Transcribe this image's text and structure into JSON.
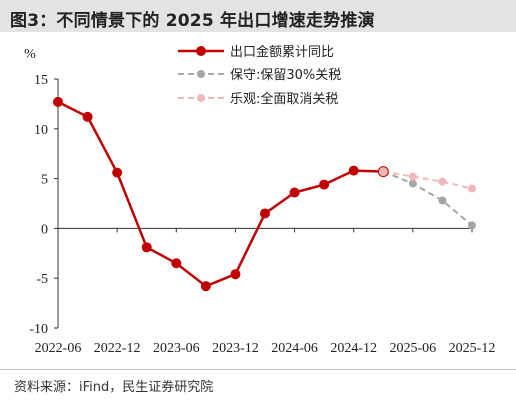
{
  "title": "图3：不同情景下的 2025 年出口增速走势推演",
  "source": "资料来源：iFind，民生证券研究院",
  "colors": {
    "actual": "#c00000",
    "keep30": "#a6a6a6",
    "full_cancel": "#f2b8b8",
    "title_bg": "#e3e3e3"
  },
  "chart_data": {
    "type": "line",
    "ylabel": "%",
    "ylim": [
      -10,
      15
    ],
    "yticks": [
      -10,
      -5,
      0,
      5,
      10,
      15
    ],
    "x_start": "2022-06",
    "x_end": "2025-12",
    "xtick_labels": [
      "2022-06",
      "2022-12",
      "2023-06",
      "2023-12",
      "2024-06",
      "2024-12",
      "2025-06",
      "2025-12"
    ],
    "grid": false,
    "legend_position": "top-center",
    "series": [
      {
        "name": "出口金额累计同比",
        "style": "solid-marker",
        "color": "#c00000",
        "points": [
          {
            "x": "2022-06",
            "y": 12.7
          },
          {
            "x": "2022-09",
            "y": 11.2
          },
          {
            "x": "2022-12",
            "y": 5.6
          },
          {
            "x": "2023-03",
            "y": -1.9
          },
          {
            "x": "2023-06",
            "y": -3.5
          },
          {
            "x": "2023-09",
            "y": -5.8
          },
          {
            "x": "2023-12",
            "y": -4.6
          },
          {
            "x": "2024-03",
            "y": 1.5
          },
          {
            "x": "2024-06",
            "y": 3.6
          },
          {
            "x": "2024-09",
            "y": 4.4
          },
          {
            "x": "2024-12",
            "y": 5.8
          },
          {
            "x": "2025-03",
            "y": 5.7
          }
        ]
      },
      {
        "name": "保守:保留30%关税",
        "style": "dashed-marker",
        "color": "#a6a6a6",
        "points": [
          {
            "x": "2025-03",
            "y": 5.7
          },
          {
            "x": "2025-06",
            "y": 4.5
          },
          {
            "x": "2025-09",
            "y": 2.8
          },
          {
            "x": "2025-12",
            "y": 0.3
          }
        ]
      },
      {
        "name": "乐观:全面取消关税",
        "style": "dashed-marker",
        "color": "#f2b8b8",
        "points": [
          {
            "x": "2025-03",
            "y": 5.7
          },
          {
            "x": "2025-06",
            "y": 5.2
          },
          {
            "x": "2025-09",
            "y": 4.7
          },
          {
            "x": "2025-12",
            "y": 4.0
          }
        ]
      }
    ]
  }
}
